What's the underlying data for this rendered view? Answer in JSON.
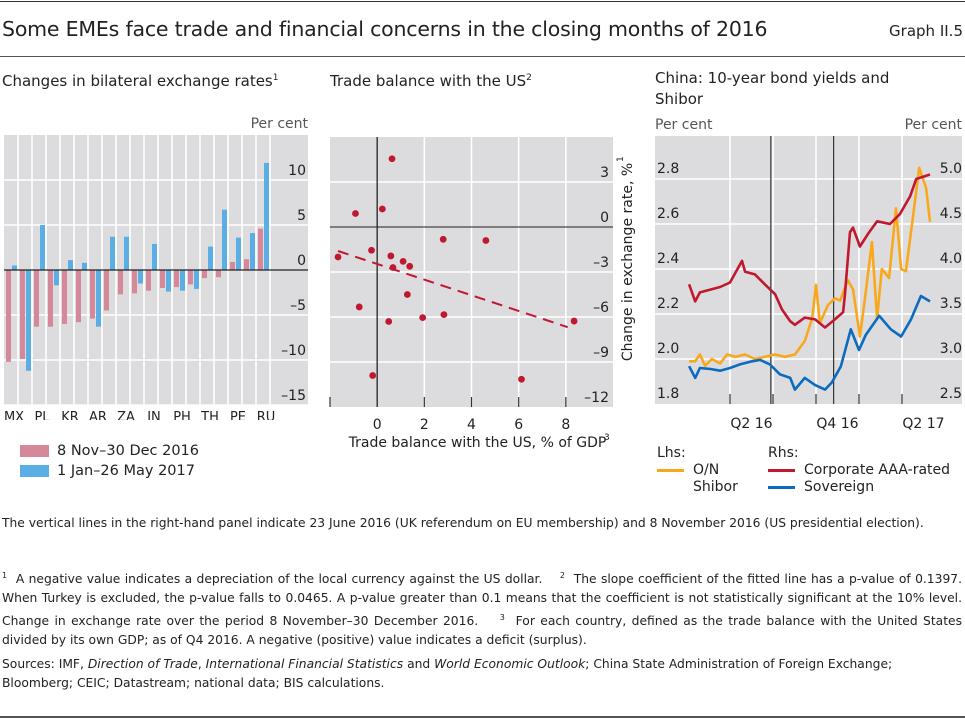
{
  "header": {
    "title": "Some EMEs face trade and financial concerns in the closing months of 2016",
    "graph_number": "Graph II.5"
  },
  "colors": {
    "bar_2016": "#d4889a",
    "bar_2017": "#5aaee3",
    "plot_bg": "#dcdcde",
    "grid": "#ffffff",
    "scatter_point": "#c0192f",
    "trend_line": "#c0192f",
    "shibor": "#f9a81b",
    "corporate": "#c0192f",
    "sovereign": "#0b6bbf"
  },
  "chart_data": [
    {
      "type": "bar",
      "title": "Changes in bilateral exchange rates",
      "title_footnote": "1",
      "unit_label": "Per cent",
      "categories": [
        "MX",
        "TR",
        "PL",
        "MY",
        "KR",
        "HU",
        "AR",
        "CZ",
        "ZA",
        "ID",
        "IN",
        "CL",
        "PH",
        "BR",
        "TH",
        "IL",
        "PE",
        "CO",
        "RU"
      ],
      "category_label_rows": [
        "upper",
        "lower",
        "upper",
        "lower",
        "upper",
        "lower",
        "upper",
        "lower",
        "upper",
        "lower",
        "upper",
        "lower",
        "upper",
        "lower",
        "upper",
        "lower",
        "upper",
        "lower",
        "upper"
      ],
      "series": [
        {
          "name": "8 Nov–30 Dec 2016",
          "color_key": "bar_2016",
          "values": [
            -10.2,
            -9.9,
            -6.3,
            -6.3,
            -6.0,
            -5.8,
            -5.4,
            -4.5,
            -2.7,
            -2.6,
            -2.3,
            -2.0,
            -1.9,
            -1.6,
            -0.9,
            -0.8,
            0.9,
            1.2,
            4.6
          ]
        },
        {
          "name": "1 Jan–26 May 2017",
          "color_key": "bar_2017",
          "values": [
            0.5,
            -11.2,
            5.0,
            -1.7,
            1.1,
            0.8,
            -6.3,
            3.7,
            3.7,
            -1.5,
            2.9,
            -2.4,
            -2.3,
            -2.1,
            2.6,
            6.7,
            3.6,
            4.1,
            11.9
          ]
        }
      ],
      "ylim": [
        -16,
        16
      ],
      "yticks": [
        10,
        5,
        0,
        -5,
        -10,
        -15
      ],
      "ytick_labels": [
        "10",
        "5",
        "0",
        "–5",
        "–10",
        "–15"
      ],
      "grid": true,
      "legend_position": "bottom-left"
    },
    {
      "type": "scatter",
      "title": "Trade balance with the US",
      "title_footnote": "2",
      "xlabel": "Trade balance with the US, % of GDP",
      "xlabel_footnote": "3",
      "ylabel": "Change in exchange rate, %",
      "ylabel_footnote": "1",
      "xlim": [
        -2,
        10
      ],
      "ylim": [
        -12,
        6
      ],
      "xticks": [
        0,
        2,
        4,
        6,
        8
      ],
      "xtick_labels": [
        "0",
        "2",
        "4",
        "6",
        "8"
      ],
      "yticks": [
        3,
        0,
        -3,
        -6,
        -9,
        -12
      ],
      "ytick_labels": [
        "3",
        "0",
        "–3",
        "–6",
        "–9",
        "–12"
      ],
      "points": [
        {
          "x": 0.63,
          "y": 4.55
        },
        {
          "x": -0.92,
          "y": 0.9
        },
        {
          "x": 0.22,
          "y": 1.2
        },
        {
          "x": 2.8,
          "y": -0.82
        },
        {
          "x": 4.61,
          "y": -0.9
        },
        {
          "x": -1.66,
          "y": -2.0
        },
        {
          "x": -0.24,
          "y": -1.55
        },
        {
          "x": 0.58,
          "y": -1.93
        },
        {
          "x": 0.67,
          "y": -2.7
        },
        {
          "x": 1.1,
          "y": -2.29
        },
        {
          "x": 1.38,
          "y": -2.62
        },
        {
          "x": 1.28,
          "y": -4.5
        },
        {
          "x": -0.76,
          "y": -5.33
        },
        {
          "x": 0.49,
          "y": -6.3
        },
        {
          "x": 1.93,
          "y": -6.04
        },
        {
          "x": 2.83,
          "y": -5.84
        },
        {
          "x": 8.35,
          "y": -6.27
        },
        {
          "x": -0.19,
          "y": -9.9
        },
        {
          "x": 6.12,
          "y": -10.15
        }
      ],
      "trend_line": {
        "x": [
          -1.66,
          8.08
        ],
        "y": [
          -1.6,
          -6.68
        ],
        "style": "dashed"
      },
      "grid": true
    },
    {
      "type": "line",
      "title": "China: 10-year bond yields and Shibor",
      "left_unit_label": "Per cent",
      "right_unit_label": "Per cent",
      "x_unit": "quarters since 1 Jan 2016",
      "xlim": [
        0,
        6
      ],
      "xtick_positions": [
        1,
        2,
        3,
        4,
        5
      ],
      "xtick_labels": [
        {
          "label": "Q2 16",
          "at": 1.5
        },
        {
          "label": "Q4 16",
          "at": 3.5
        },
        {
          "label": "Q2 17",
          "at": 5.5
        }
      ],
      "event_lines": [
        {
          "date": "23 June 2016",
          "at": 1.95
        },
        {
          "date": "8 November 2016",
          "at": 3.41
        }
      ],
      "left_ylim": [
        1.8,
        2.9
      ],
      "left_yticks": [
        "1.8",
        "2.0",
        "2.2",
        "2.4",
        "2.6",
        "2.8"
      ],
      "right_ylim": [
        2.5,
        5.25
      ],
      "right_yticks": [
        "2.5",
        "3.0",
        "3.5",
        "4.0",
        "4.5",
        "5.0"
      ],
      "series": [
        {
          "name": "O/N Shibor",
          "axis": "left",
          "color_key": "shibor",
          "x": [
            0.05,
            0.19,
            0.3,
            0.42,
            0.58,
            0.77,
            0.93,
            1.12,
            1.35,
            1.58,
            1.81,
            2.05,
            2.28,
            2.51,
            2.74,
            2.91,
            3.0,
            3.09,
            3.28,
            3.44,
            3.56,
            3.74,
            3.86,
            4.02,
            4.14,
            4.3,
            4.42,
            4.53,
            4.7,
            4.86,
            4.98,
            5.09,
            5.26,
            5.4,
            5.56,
            5.65
          ],
          "y": [
            1.99,
            1.99,
            2.02,
            1.97,
            2.0,
            1.98,
            2.02,
            2.01,
            2.02,
            2.0,
            2.01,
            2.02,
            2.01,
            2.02,
            2.08,
            2.18,
            2.33,
            2.16,
            2.24,
            2.27,
            2.26,
            2.35,
            2.31,
            2.1,
            2.27,
            2.52,
            2.18,
            2.4,
            2.36,
            2.67,
            2.4,
            2.39,
            2.64,
            2.85,
            2.76,
            2.61
          ]
        },
        {
          "name": "Corporate AAA-rated",
          "axis": "right",
          "color_key": "corporate",
          "x": [
            0.05,
            0.19,
            0.3,
            0.53,
            0.77,
            1.0,
            1.28,
            1.35,
            1.58,
            1.81,
            2.05,
            2.21,
            2.4,
            2.51,
            2.74,
            2.98,
            3.21,
            3.44,
            3.63,
            3.67,
            3.79,
            3.86,
            4.02,
            4.21,
            4.42,
            4.72,
            4.95,
            5.19,
            5.33,
            5.65
          ],
          "y": [
            3.83,
            3.64,
            3.74,
            3.77,
            3.8,
            3.85,
            4.09,
            3.97,
            3.94,
            3.83,
            3.72,
            3.55,
            3.42,
            3.38,
            3.46,
            3.44,
            3.35,
            3.44,
            3.52,
            3.7,
            4.41,
            4.46,
            4.25,
            4.39,
            4.53,
            4.5,
            4.61,
            4.81,
            5.0,
            5.05
          ]
        },
        {
          "name": "Sovereign",
          "axis": "right",
          "color_key": "sovereign",
          "x": [
            0.05,
            0.19,
            0.3,
            0.53,
            0.77,
            1.0,
            1.23,
            1.47,
            1.7,
            1.93,
            2.16,
            2.4,
            2.51,
            2.74,
            2.98,
            3.21,
            3.37,
            3.58,
            3.81,
            4.0,
            4.16,
            4.47,
            4.74,
            4.98,
            5.21,
            5.44,
            5.65
          ],
          "y": [
            2.92,
            2.79,
            2.9,
            2.89,
            2.87,
            2.9,
            2.94,
            2.97,
            2.99,
            2.94,
            2.83,
            2.79,
            2.66,
            2.79,
            2.71,
            2.66,
            2.74,
            2.92,
            3.33,
            3.1,
            3.27,
            3.48,
            3.33,
            3.25,
            3.44,
            3.7,
            3.64
          ]
        }
      ],
      "legend": {
        "lhs_label": "Lhs:",
        "rhs_label": "Rhs:",
        "lhs_items": [
          "O/N Shibor"
        ],
        "rhs_items": [
          "Corporate AAA-rated",
          "Sovereign"
        ]
      },
      "grid": true
    }
  ],
  "panels": {
    "left_title": "Changes in bilateral exchange rates",
    "left_title_sup": "1",
    "middle_title": "Trade balance with the US",
    "middle_title_sup": "2",
    "right_title_line1": "China: 10-year bond yields and",
    "right_title_line2": "Shibor"
  },
  "legend_left": {
    "item1": "8 Nov–30 Dec 2016",
    "item2": "1 Jan–26 May 2017"
  },
  "legend_right": {
    "lhs": "Lhs:",
    "rhs": "Rhs:",
    "shibor_line1": "O/N",
    "shibor_line2": "Shibor",
    "corporate": "Corporate AAA-rated",
    "sovereign": "Sovereign"
  },
  "notes": {
    "vertical_lines": "The vertical lines in the right-hand panel indicate 23 June 2016 (UK referendum on EU membership) and 8 November 2016 (US presidential election).",
    "fn1_mark": "1",
    "fn1": "A negative value indicates a depreciation of the local currency against the US dollar.",
    "fn2_mark": "2",
    "fn2": "The slope coefficient of the fitted line has a p-value of 0.1397. When Turkey is excluded, the p-value falls to 0.0465. A p-value greater than 0.1 means that the coefficient is not statistically significant at the 10% level. Change in exchange rate over the period 8 November–30 December 2016.",
    "fn3_mark": "3",
    "fn3": "For each country, defined as the trade balance with the United States divided by its own GDP; as of Q4 2016. A negative (positive) value indicates a deficit (surplus).",
    "sources_prefix": "Sources: IMF, ",
    "src_italic1": "Direction of Trade",
    "src_sep1": ", ",
    "src_italic2": "International Financial Statistics",
    "src_and": " and ",
    "src_italic3": "World Economic Outlook",
    "sources_suffix": "; China State Administration of Foreign Exchange; Bloomberg; CEIC; Datastream; national data; BIS calculations."
  }
}
